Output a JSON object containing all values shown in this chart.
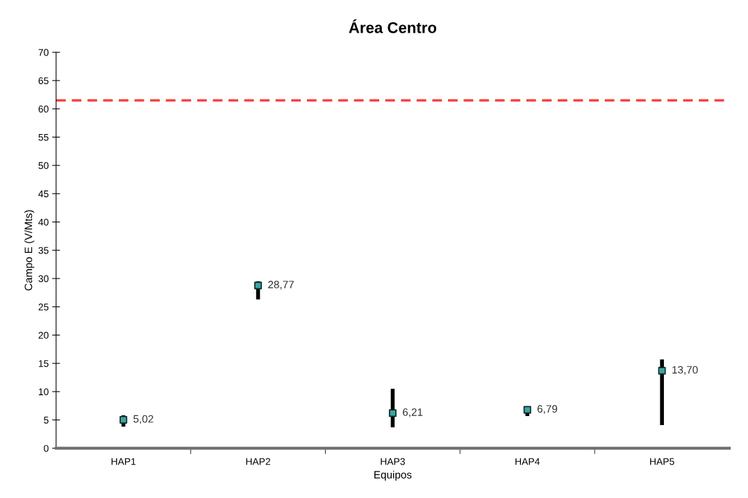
{
  "chart_data": {
    "type": "scatter",
    "title": "Área Centro",
    "xlabel": "Equipos",
    "ylabel": "Campo E (V/Mts)",
    "categories": [
      "HAP1",
      "HAP2",
      "HAP3",
      "HAP4",
      "HAP5"
    ],
    "values": [
      5.02,
      28.77,
      6.21,
      6.79,
      13.7
    ],
    "value_labels": [
      "5,02",
      "28,77",
      "6,21",
      "6,79",
      "13,70"
    ],
    "errors": [
      [
        3.8,
        5.8
      ],
      [
        26.3,
        29.5
      ],
      [
        3.7,
        10.5
      ],
      [
        5.7,
        7.4
      ],
      [
        4.1,
        15.7
      ]
    ],
    "color": "#3fa3a0",
    "marker": "square",
    "ylim": [
      0,
      70
    ],
    "yticks": [
      0,
      5,
      10,
      15,
      20,
      25,
      30,
      35,
      40,
      45,
      50,
      55,
      60,
      65,
      70
    ],
    "ref_lines": [
      {
        "axis": "y",
        "value": 61.5,
        "color": "#ff4040",
        "line_style": "dashed"
      }
    ],
    "grid": false,
    "legend": false
  }
}
